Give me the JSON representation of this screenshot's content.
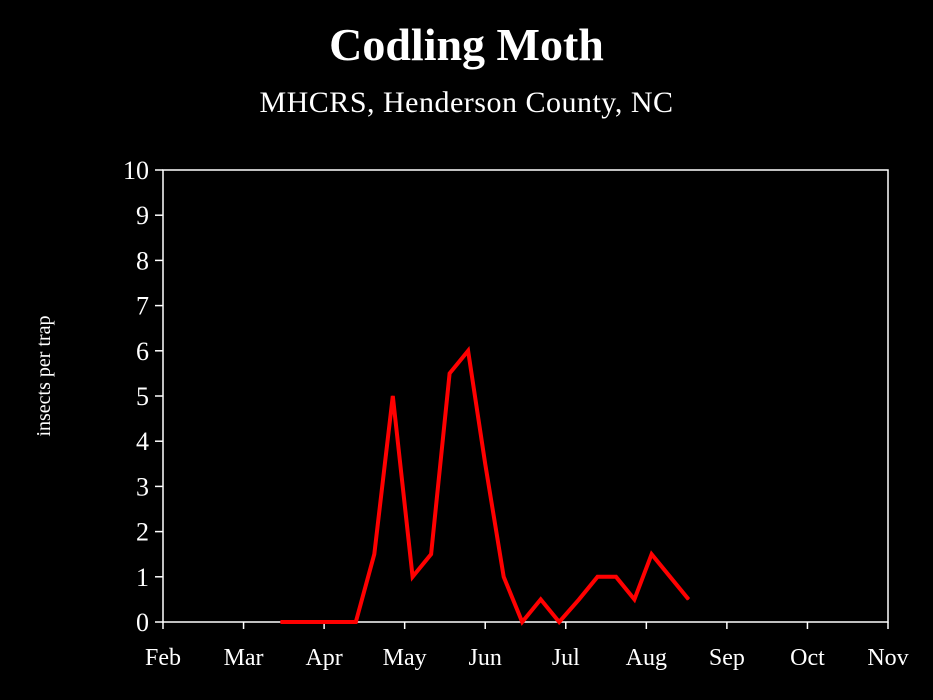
{
  "chart_data": {
    "type": "line",
    "title": "Codling Moth",
    "subtitle": "MHCRS, Henderson County, NC",
    "ylabel": "insects per trap",
    "xlabel": "",
    "ylim": [
      0,
      10
    ],
    "yticks": [
      "0",
      "1",
      "2",
      "3",
      "4",
      "5",
      "6",
      "7",
      "8",
      "9",
      "10"
    ],
    "categories": [
      "Feb",
      "Mar",
      "Apr",
      "May",
      "Jun",
      "Jul",
      "Aug",
      "Sep",
      "Oct",
      "Nov"
    ],
    "grid": false,
    "legend": "none",
    "series": [
      {
        "color": "#ff0000",
        "x": [
          "Mar 15",
          "Mar 22",
          "Mar 29",
          "Apr 6",
          "Apr 13",
          "Apr 20",
          "Apr 27",
          "May 4",
          "May 11",
          "May 18",
          "May 25",
          "Jun 1",
          "Jun 8",
          "Jun 15",
          "Jun 22",
          "Jun 29",
          "Jul 6",
          "Jul 13",
          "Jul 20",
          "Jul 27",
          "Aug 3",
          "Aug 10",
          "Aug 17"
        ],
        "values": [
          0,
          0,
          0,
          0,
          0,
          1.5,
          5,
          1,
          1.5,
          5.5,
          6,
          3.5,
          1,
          0,
          0.5,
          0,
          0.5,
          1,
          1,
          0.5,
          1.5,
          1,
          0.5
        ]
      }
    ]
  }
}
